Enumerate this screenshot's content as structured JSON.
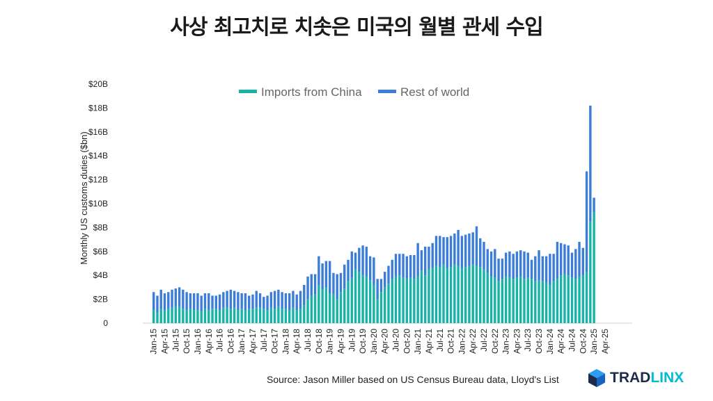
{
  "header": {
    "title": "사상 최고치로 치솟은 미국의 월별 관세 수입"
  },
  "footer": {
    "source": "Source: Jason Miller based on US Census Bureau data, Lloyd's List"
  },
  "brand": {
    "logo_part1": "TRAD",
    "logo_part2": "LINX",
    "color_dark": "#1c2b4a",
    "color_accent": "#00bcd4",
    "icon": "cube-logo-icon"
  },
  "chart_data": {
    "type": "bar",
    "stacked": true,
    "ylabel": "Monthly US customs duties ($bn)",
    "ylim": [
      0,
      20
    ],
    "yticks": [
      0,
      2,
      4,
      6,
      8,
      10,
      12,
      14,
      16,
      18,
      20
    ],
    "ytick_labels": [
      "0",
      "$2B",
      "$4B",
      "$6B",
      "$8B",
      "$10B",
      "$12B",
      "$14B",
      "$16B",
      "$18B",
      "$20B"
    ],
    "grid": false,
    "legend_position": "top",
    "xtick_labels": [
      "Jan-15",
      "Apr-15",
      "Jul-15",
      "Oct-15",
      "Jan-16",
      "Apr-16",
      "Jul-16",
      "Oct-16",
      "Jan-17",
      "Apr-17",
      "Jul-17",
      "Oct-17",
      "Jan-18",
      "Apr-18",
      "Jul-18",
      "Oct-18",
      "Jan-19",
      "Apr-19",
      "Jul-19",
      "Oct-19",
      "Jan-20",
      "Apr-20",
      "Jul-20",
      "Oct-20",
      "Jan-21",
      "Apr-21",
      "Jul-21",
      "Oct-21",
      "Jan-22",
      "Apr-22",
      "Jul-22",
      "Oct-22",
      "Jan-23",
      "Apr-23",
      "Jul-23",
      "Oct-23",
      "Jan-24",
      "Apr-24",
      "Jul-24",
      "Oct-24",
      "Jan-25",
      "Apr-25"
    ],
    "series": [
      {
        "name": "Imports from China",
        "color": "#17b3a6",
        "values": [
          1.1,
          0.9,
          1.2,
          1.1,
          1.2,
          1.3,
          1.4,
          1.4,
          1.2,
          1.1,
          1.2,
          1.1,
          1.1,
          1.0,
          1.2,
          1.1,
          1.2,
          1.2,
          1.1,
          1.3,
          1.3,
          1.2,
          1.3,
          1.1,
          1.2,
          1.1,
          1.2,
          1.2,
          1.3,
          1.3,
          1.2,
          1.1,
          1.3,
          1.2,
          1.4,
          1.2,
          1.2,
          1.1,
          1.3,
          1.1,
          1.2,
          1.5,
          2.0,
          2.3,
          2.4,
          3.2,
          2.8,
          3.0,
          2.5,
          2.4,
          2.0,
          2.6,
          2.9,
          3.5,
          3.8,
          4.5,
          4.3,
          4.0,
          3.9,
          3.6,
          3.2,
          2.0,
          2.6,
          3.0,
          3.3,
          3.7,
          3.9,
          4.0,
          3.8,
          3.7,
          3.8,
          3.7,
          3.9,
          4.4,
          4.0,
          4.5,
          4.6,
          4.8,
          4.7,
          4.9,
          4.6,
          4.7,
          4.9,
          4.8,
          4.6,
          4.7,
          4.8,
          4.9,
          4.8,
          4.7,
          4.5,
          4.2,
          3.9,
          3.8,
          3.5,
          3.7,
          3.9,
          3.8,
          3.7,
          3.8,
          3.9,
          3.7,
          3.8,
          3.7,
          3.5,
          3.6,
          3.5,
          3.4,
          3.2,
          3.5,
          3.7,
          4.0,
          4.1,
          4.0,
          3.8,
          3.7,
          3.9,
          4.0,
          4.3,
          8.5,
          9.3
        ]
      },
      {
        "name": "Rest of world",
        "color": "#3b7dd8",
        "values": [
          1.5,
          1.4,
          1.6,
          1.4,
          1.4,
          1.5,
          1.5,
          1.6,
          1.6,
          1.5,
          1.3,
          1.4,
          1.4,
          1.3,
          1.3,
          1.4,
          1.1,
          1.1,
          1.3,
          1.3,
          1.4,
          1.6,
          1.4,
          1.5,
          1.3,
          1.4,
          1.1,
          1.2,
          1.4,
          1.2,
          1.0,
          1.2,
          1.3,
          1.5,
          1.4,
          1.4,
          1.3,
          1.4,
          1.4,
          1.3,
          1.5,
          1.7,
          1.9,
          1.8,
          1.7,
          2.4,
          2.2,
          2.2,
          2.7,
          1.8,
          2.1,
          1.6,
          2.0,
          1.8,
          2.2,
          1.4,
          2.0,
          2.5,
          2.5,
          2.0,
          2.3,
          1.7,
          1.1,
          1.3,
          1.5,
          1.6,
          1.9,
          1.8,
          2.0,
          1.9,
          1.9,
          2.0,
          2.8,
          1.7,
          2.4,
          1.9,
          2.1,
          2.5,
          2.6,
          2.3,
          2.6,
          2.6,
          2.6,
          3.0,
          2.7,
          2.7,
          2.7,
          2.7,
          3.3,
          2.4,
          2.3,
          2.0,
          2.1,
          2.4,
          1.9,
          1.7,
          2.0,
          2.2,
          2.1,
          2.2,
          2.2,
          2.3,
          2.1,
          1.6,
          2.1,
          2.5,
          2.1,
          2.2,
          2.6,
          2.3,
          3.1,
          2.7,
          2.5,
          2.5,
          2.1,
          2.5,
          2.9,
          2.3,
          8.4,
          9.7,
          1.2
        ]
      }
    ]
  }
}
